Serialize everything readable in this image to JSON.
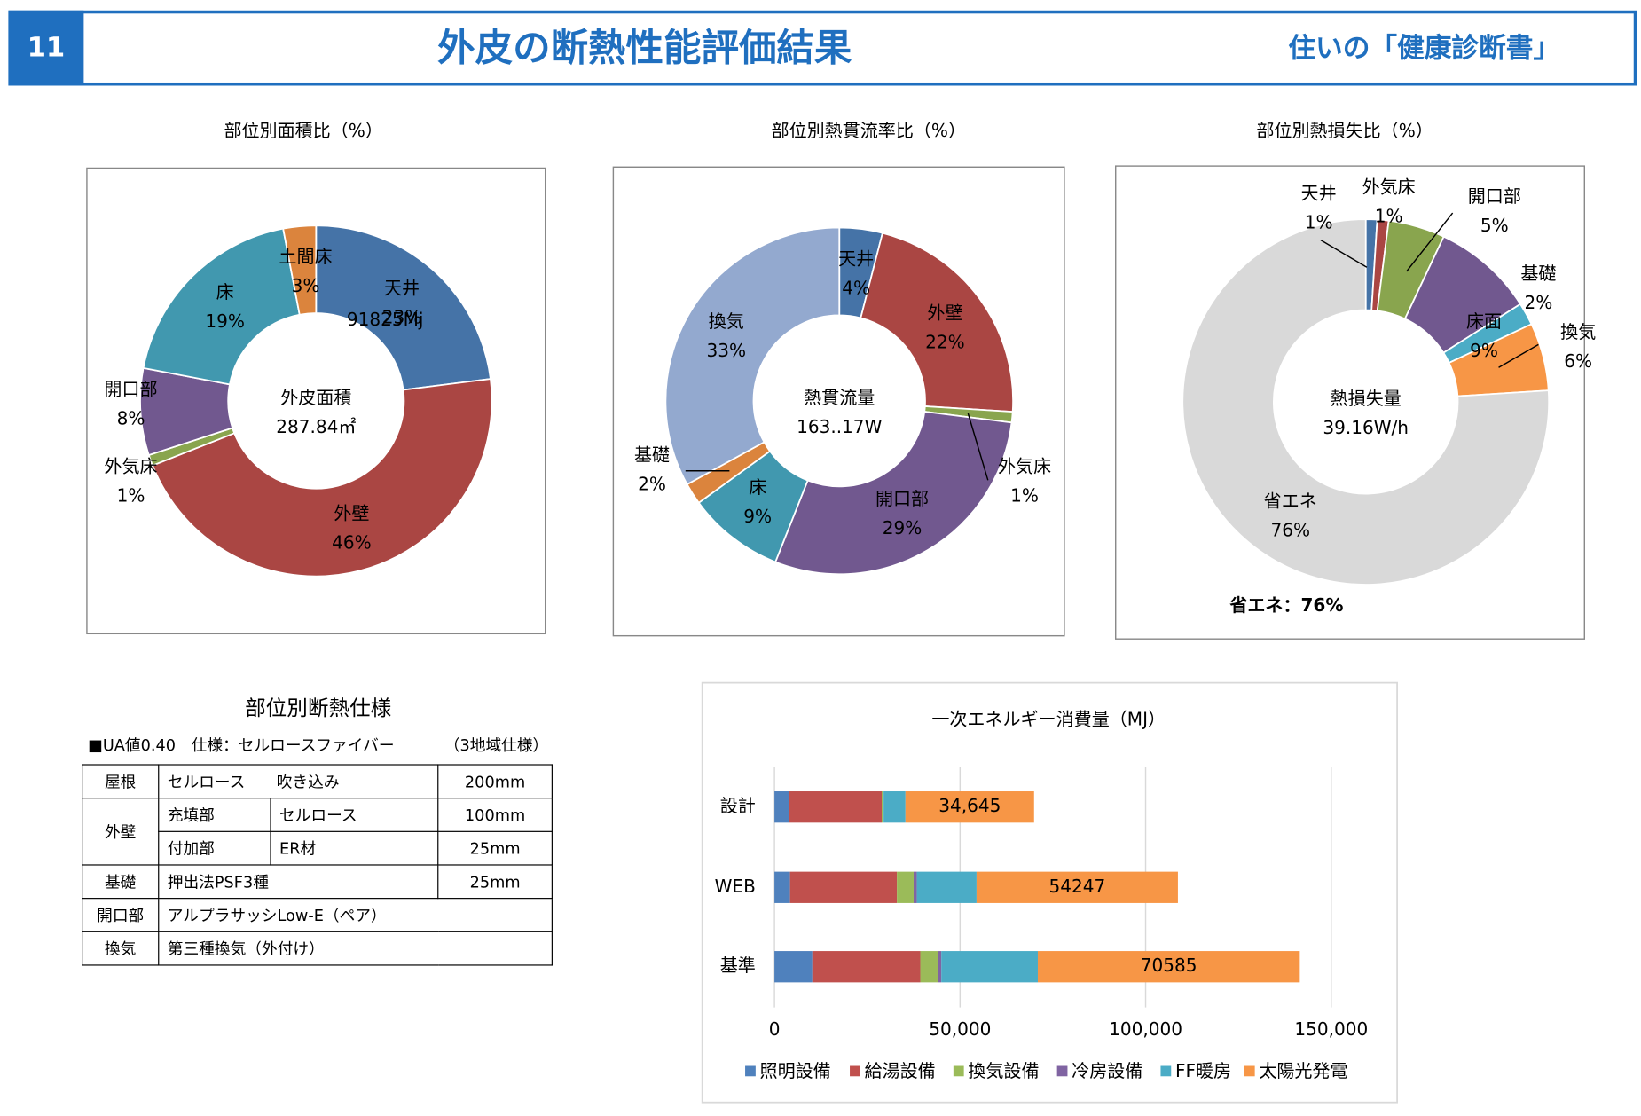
{
  "header": {
    "number": "11",
    "title": "外皮の断熱性能評価結果",
    "right": "住いの「健康診断書」"
  },
  "chart_data": [
    {
      "type": "donut",
      "title": "部位別面積比（%）",
      "categories": [
        "天井",
        "外壁",
        "外気床",
        "開口部",
        "床",
        "土間床"
      ],
      "values": [
        23,
        46,
        1,
        8,
        19,
        3
      ],
      "value_labels": [
        "23%",
        "46%",
        "1%",
        "8%",
        "19%",
        "3%"
      ],
      "colors": [
        "#4573a7",
        "#aa4643",
        "#89a54e",
        "#71588f",
        "#4198af",
        "#db843d"
      ],
      "center_title": "外皮面積",
      "center_value": "287.84㎡",
      "annotation": "91825Mj"
    },
    {
      "type": "donut",
      "title": "部位別熱貫流率比（%）",
      "categories": [
        "天井",
        "外壁",
        "外気床",
        "開口部",
        "床",
        "基礎",
        "換気"
      ],
      "values": [
        4,
        22,
        1,
        29,
        9,
        2,
        33
      ],
      "value_labels": [
        "4%",
        "22%",
        "1%",
        "29%",
        "9%",
        "2%",
        "33%"
      ],
      "colors": [
        "#4573a7",
        "#aa4643",
        "#89a54e",
        "#71588f",
        "#4198af",
        "#db843d",
        "#93a9cf"
      ],
      "center_title": "熱貫流量",
      "center_value": "163..17W"
    },
    {
      "type": "donut",
      "title": "部位別熱損失比（%）",
      "categories": [
        "天井",
        "外気床",
        "開口部",
        "床面",
        "基礎",
        "換気",
        "省エネ"
      ],
      "values": [
        1,
        1,
        5,
        9,
        2,
        6,
        76
      ],
      "value_labels": [
        "1%",
        "1%",
        "5%",
        "9%",
        "2%",
        "6%",
        "76%"
      ],
      "colors": [
        "#4573a7",
        "#aa4643",
        "#89a54e",
        "#71588f",
        "#4bacc6",
        "#f79646",
        "#d9d9d9"
      ],
      "center_title": "熱損失量",
      "center_value": "39.16W/h",
      "annotation": "省エネ：76%"
    },
    {
      "type": "bar",
      "orientation": "horizontal",
      "stacked": true,
      "grid": true,
      "title": "一次エネルギー消費量（MJ）",
      "categories": [
        "設計",
        "WEB",
        "基準"
      ],
      "series": [
        {
          "name": "照明設備",
          "color": "#4f81bd",
          "values": [
            4000,
            4200,
            10200
          ]
        },
        {
          "name": "給湯設備",
          "color": "#c0504d",
          "values": [
            24900,
            28800,
            29100
          ]
        },
        {
          "name": "換気設備",
          "color": "#9bbb59",
          "values": [
            500,
            4500,
            4800
          ]
        },
        {
          "name": "冷房設備",
          "color": "#8064a2",
          "values": [
            0,
            850,
            850
          ]
        },
        {
          "name": "FF暖房",
          "color": "#4bacc6",
          "values": [
            5900,
            16100,
            26000
          ]
        },
        {
          "name": "太陽光発電",
          "color": "#f79646",
          "values": [
            34645,
            54247,
            70585
          ],
          "value_labels": [
            "34,645",
            "54247",
            "70585"
          ]
        }
      ],
      "xlim": [
        0,
        150000
      ],
      "xticks": [
        0,
        {
          "value": 50000,
          "label": "50,000"
        },
        {
          "value": 100000,
          "label": "100,000"
        },
        {
          "value": 150000,
          "label": "150,000"
        }
      ]
    }
  ],
  "table": {
    "title": "部位別断熱仕様",
    "note": "■UA値0.40　仕様：セルロースファイバー",
    "note_right": "（3地域仕様）",
    "rows": [
      [
        "屋根",
        "セルロース　　吹き込み",
        "200mm"
      ],
      [
        "外壁",
        "充填部",
        "セルロース",
        "100mm"
      ],
      [
        "付加部",
        "ER材",
        "25mm"
      ],
      [
        "基礎",
        "押出法PSF3種",
        "25mm"
      ],
      [
        "開口部",
        "アルプラサッシLow-E（ペア）"
      ],
      [
        "換気",
        "第三種換気（外付け）"
      ]
    ]
  }
}
